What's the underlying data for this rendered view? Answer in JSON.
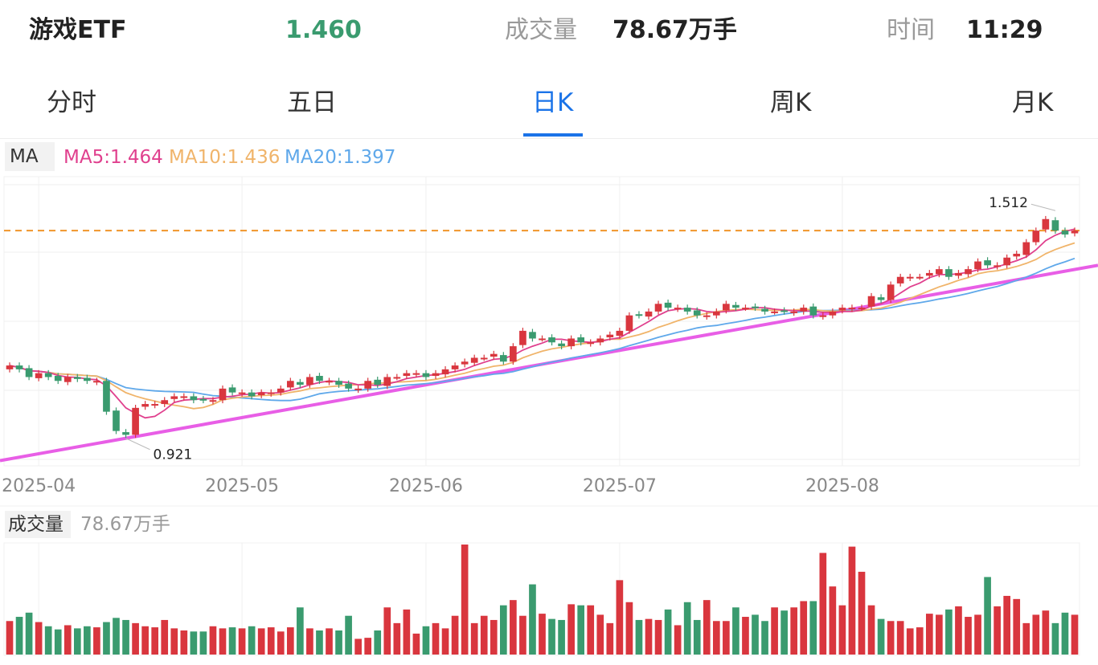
{
  "header": {
    "name": "游戏ETF",
    "price": "1.460",
    "volume_label": "成交量",
    "volume_value": "78.67万手",
    "time_label": "时间",
    "time_value": "11:29"
  },
  "tabs": [
    {
      "label": "分时",
      "active": false
    },
    {
      "label": "五日",
      "active": false
    },
    {
      "label": "日K",
      "active": true
    },
    {
      "label": "周K",
      "active": false
    },
    {
      "label": "月K",
      "active": false
    }
  ],
  "indicators": {
    "tag": "MA",
    "ma5": "MA5:1.464",
    "ma10": "MA10:1.436",
    "ma20": "MA20:1.397"
  },
  "volume_panel": {
    "tag": "成交量",
    "value": "78.67万手"
  },
  "colors": {
    "up": "#d9363e",
    "down": "#3a9b6f",
    "ma5": "#e0408e",
    "ma10": "#f0b46a",
    "ma20": "#5fa8ea",
    "trendline": "#e85ee6",
    "current_price_line": "#f0952a",
    "accent": "#1a73e8"
  },
  "chart_data": {
    "type": "candlestick",
    "x_tick_labels": [
      "2025-04",
      "2025-05",
      "2025-06",
      "2025-07",
      "2025-08"
    ],
    "x_tick_indices": [
      3,
      24,
      43,
      63,
      86
    ],
    "max_annotation": {
      "label": "1.512",
      "value": 1.512,
      "index": 108
    },
    "min_annotation": {
      "label": "0.921",
      "value": 0.921,
      "index": 12
    },
    "current_price": 1.46,
    "price_range": [
      0.86,
      1.6
    ],
    "close": [
      1.11,
      1.1,
      1.08,
      1.09,
      1.08,
      1.07,
      1.08,
      1.075,
      1.07,
      1.07,
      0.99,
      0.94,
      0.93,
      1.0,
      1.01,
      1.01,
      1.02,
      1.03,
      1.03,
      1.02,
      1.02,
      1.02,
      1.05,
      1.04,
      1.04,
      1.03,
      1.04,
      1.04,
      1.05,
      1.07,
      1.06,
      1.08,
      1.07,
      1.07,
      1.06,
      1.05,
      1.05,
      1.07,
      1.06,
      1.08,
      1.08,
      1.09,
      1.09,
      1.08,
      1.09,
      1.1,
      1.11,
      1.12,
      1.13,
      1.13,
      1.14,
      1.12,
      1.16,
      1.2,
      1.18,
      1.18,
      1.17,
      1.16,
      1.18,
      1.17,
      1.17,
      1.18,
      1.19,
      1.2,
      1.24,
      1.24,
      1.25,
      1.27,
      1.26,
      1.26,
      1.25,
      1.24,
      1.24,
      1.25,
      1.27,
      1.26,
      1.26,
      1.26,
      1.25,
      1.25,
      1.25,
      1.25,
      1.26,
      1.24,
      1.24,
      1.25,
      1.26,
      1.26,
      1.26,
      1.29,
      1.28,
      1.32,
      1.34,
      1.34,
      1.34,
      1.35,
      1.36,
      1.34,
      1.35,
      1.36,
      1.38,
      1.37,
      1.37,
      1.39,
      1.4,
      1.43,
      1.46,
      1.49,
      1.46,
      1.45,
      1.46
    ],
    "volume": [
      32,
      36,
      40,
      31,
      27,
      24,
      28,
      25,
      27,
      26,
      31,
      35,
      33,
      30,
      27,
      26,
      33,
      25,
      23,
      22,
      22,
      27,
      25,
      26,
      25,
      27,
      25,
      26,
      22,
      26,
      45,
      25,
      23,
      25,
      23,
      37,
      15,
      16,
      23,
      45,
      30,
      43,
      20,
      27,
      30,
      25,
      37,
      105,
      30,
      37,
      33,
      47,
      52,
      37,
      67,
      39,
      34,
      33,
      48,
      47,
      47,
      38,
      30,
      71,
      50,
      33,
      34,
      33,
      43,
      28,
      50,
      33,
      52,
      32,
      32,
      45,
      36,
      38,
      32,
      45,
      42,
      45,
      51,
      51,
      97,
      65,
      47,
      103,
      79,
      47,
      34,
      32,
      32,
      25,
      26,
      39,
      38,
      43,
      46,
      36,
      38,
      74,
      46,
      56,
      53,
      30,
      38,
      42,
      30,
      40,
      38
    ]
  }
}
